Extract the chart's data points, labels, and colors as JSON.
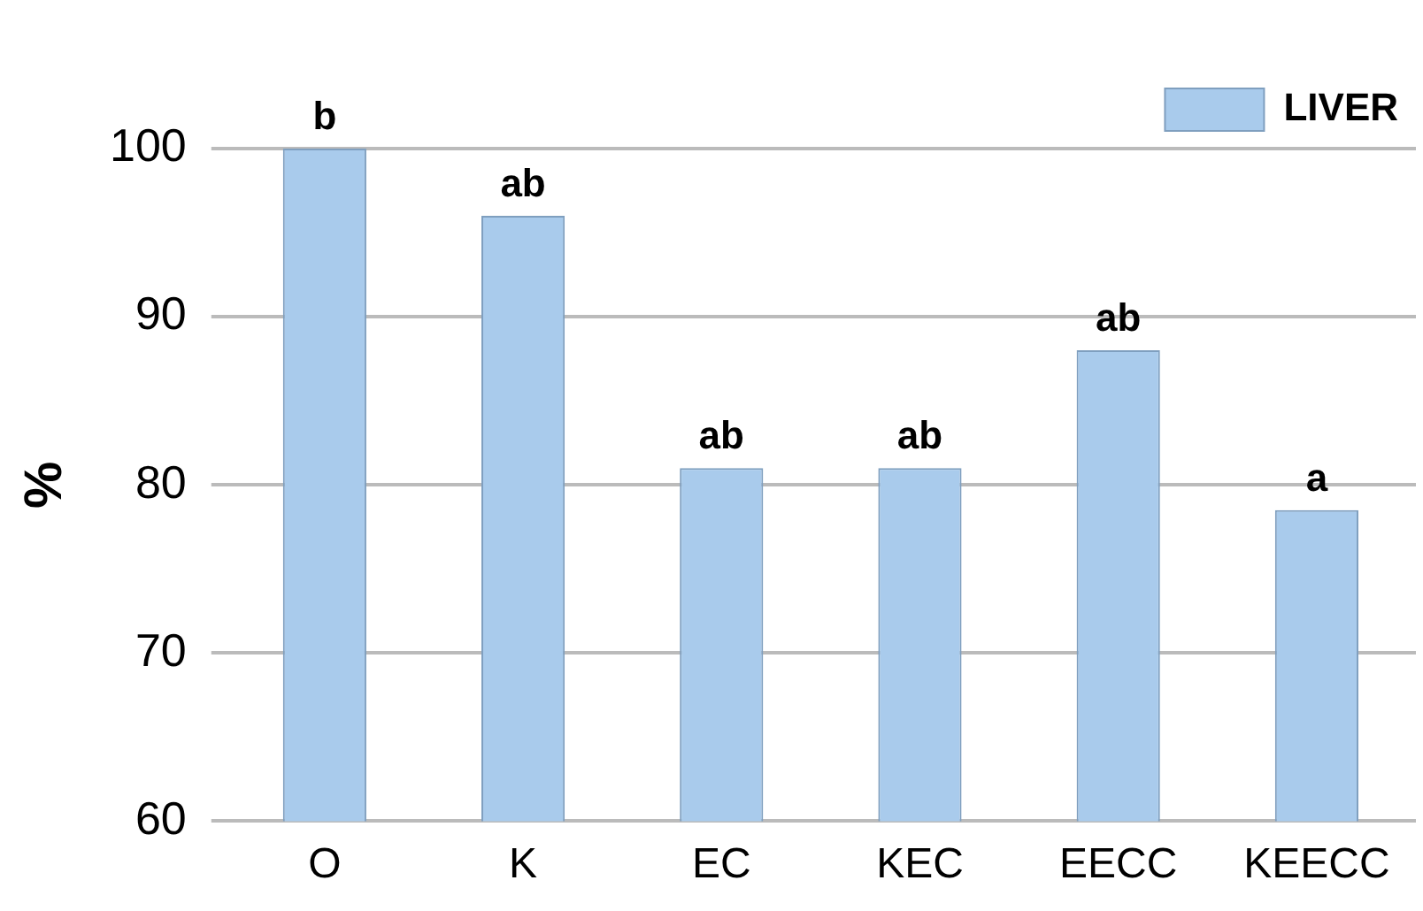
{
  "chart_data": {
    "type": "bar",
    "ylabel": "%",
    "categories": [
      "O",
      "K",
      "EC",
      "KEC",
      "EECC",
      "KEECC"
    ],
    "series": [
      {
        "name": "LIVER",
        "color": "#a9cbec",
        "values": [
          100,
          96,
          81,
          81,
          88,
          78.5
        ]
      }
    ],
    "ylim": [
      60,
      100
    ],
    "yticks": [
      60,
      70,
      80,
      90,
      100
    ],
    "grid": "y",
    "legend": "top right",
    "annotations": [
      {
        "text": "b",
        "x": "O",
        "y": 100
      },
      {
        "text": "ab",
        "x": "K",
        "y": 96
      },
      {
        "text": "ab",
        "x": "EC",
        "y": 81
      },
      {
        "text": "ab",
        "x": "KEC",
        "y": 81
      },
      {
        "text": "ab",
        "x": "EECC",
        "y": 88
      },
      {
        "text": "a",
        "x": "KEECC",
        "y": 78.5
      }
    ]
  }
}
